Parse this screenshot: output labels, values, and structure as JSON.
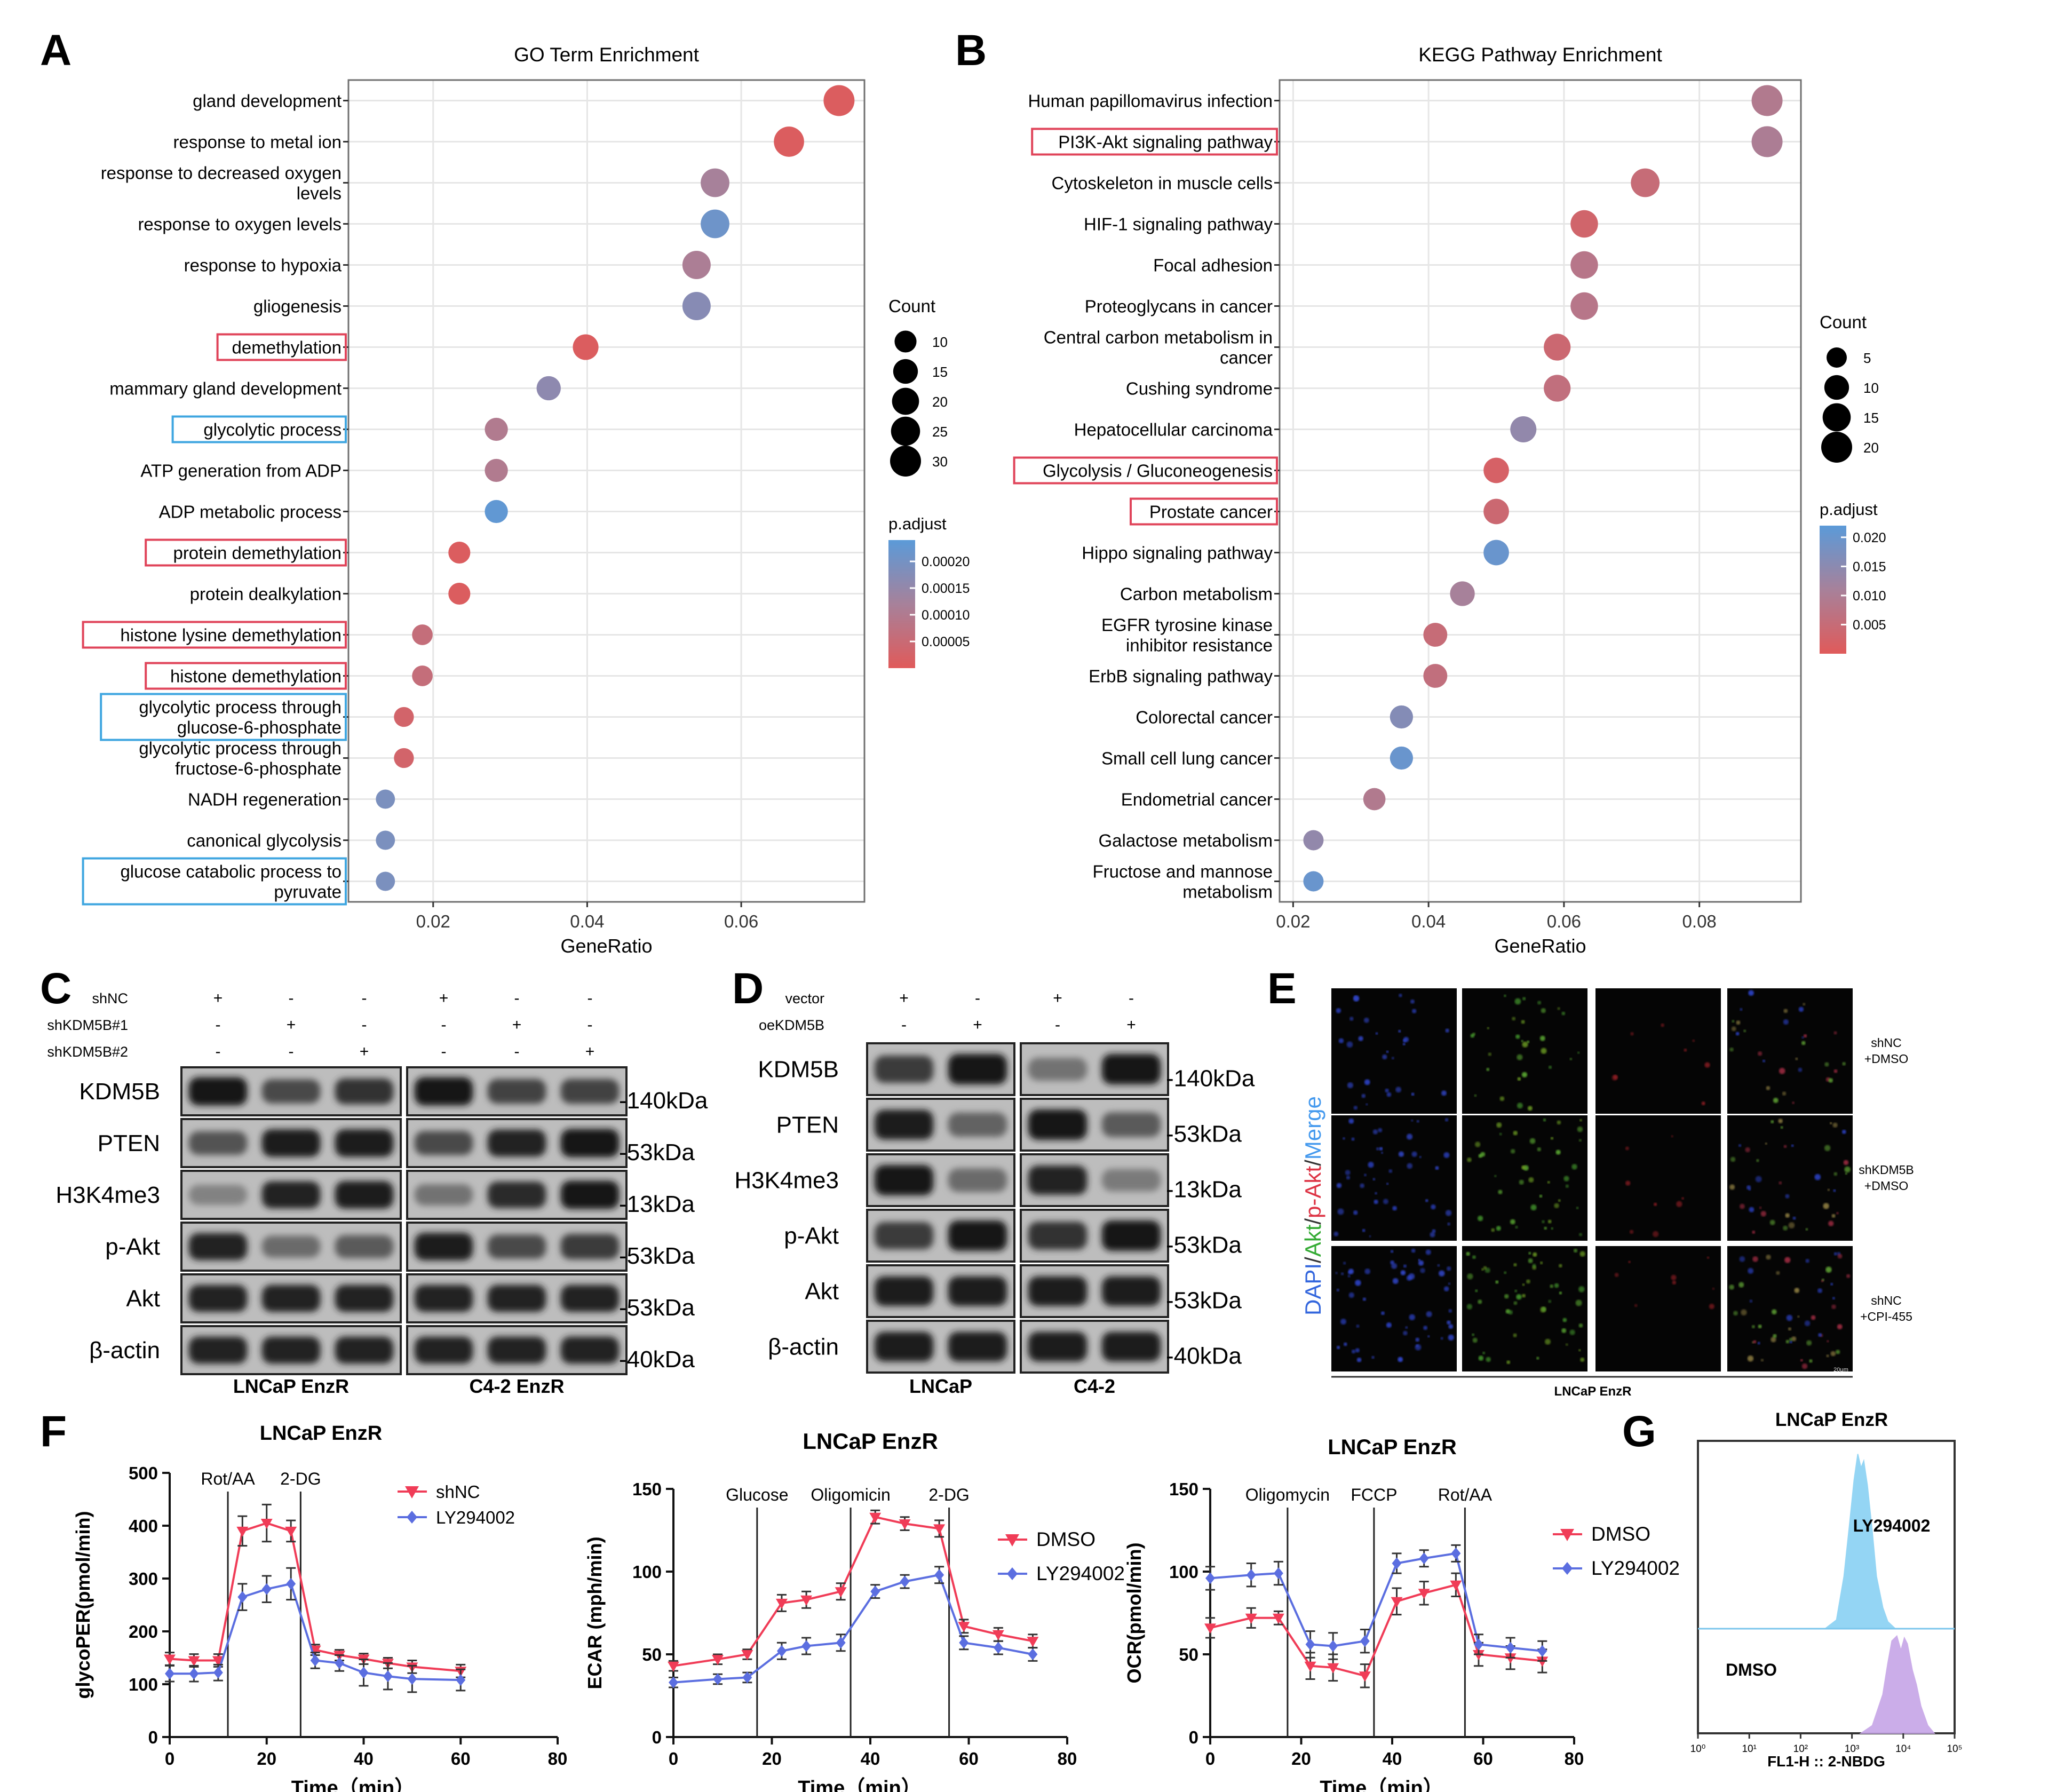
{
  "panel_letters": [
    "A",
    "B",
    "C",
    "D",
    "E",
    "F",
    "G"
  ],
  "colors": {
    "high_sig": "#e05a5a",
    "low_sig": "#5b9ad8",
    "mid": "#a7819a",
    "red_series": "#f03c57",
    "blue_series": "#5b6ee0",
    "hist_blue": "#8fd3f4",
    "hist_purple": "#c9a9e8"
  },
  "chart_data": [
    {
      "id": "A",
      "type": "scatter",
      "title": "GO Term Enrichment",
      "xlabel": "GeneRatio",
      "ylabel": "",
      "xlim": [
        0.009,
        0.076
      ],
      "xticks": [
        0.02,
        0.04,
        0.06
      ],
      "xtick_labels": [
        "0.02",
        "0.04",
        "0.06"
      ],
      "grid": true,
      "terms": [
        "gland development",
        "response to metal ion",
        "response to decreased oxygen\nlevels",
        "response to oxygen levels",
        "response to hypoxia",
        "gliogenesis",
        "demethylation",
        "mammary gland development",
        "glycolytic process",
        "ATP generation from ADP",
        "ADP metabolic process",
        "protein demethylation",
        "protein dealkylation",
        "histone lysine demethylation",
        "histone demethylation",
        "glycolytic process through\nglucose-6-phosphate",
        "glycolytic process through\nfructose-6-phosphate",
        "NADH regeneration",
        "canonical glycolysis",
        "glucose catabolic process to\npyruvate"
      ],
      "gene_ratio": [
        0.0727,
        0.0662,
        0.0566,
        0.0566,
        0.0542,
        0.0542,
        0.0398,
        0.035,
        0.0282,
        0.0282,
        0.0282,
        0.0234,
        0.0234,
        0.0186,
        0.0186,
        0.0162,
        0.0162,
        0.0138,
        0.0138,
        0.0138
      ],
      "count": [
        30,
        28,
        24,
        24,
        23,
        23,
        17,
        14,
        12,
        12,
        12,
        10,
        10,
        8,
        8,
        7,
        7,
        6,
        6,
        6
      ],
      "p_adjust": [
        1e-05,
        1e-05,
        0.00012,
        0.00021,
        0.00011,
        0.00017,
        1e-05,
        0.00016,
        0.0001,
        0.0001,
        0.00023,
        1e-05,
        1e-05,
        6e-05,
        6e-05,
        3e-05,
        3e-05,
        0.00019,
        0.00019,
        0.00019
      ],
      "highlight_red": [
        6,
        11,
        13,
        14
      ],
      "highlight_blue": [
        8,
        15,
        19
      ],
      "size_legend": {
        "title": "Count",
        "values": [
          10,
          15,
          20,
          25,
          30
        ],
        "labels": [
          "10",
          "15",
          "20",
          "25",
          "30"
        ]
      },
      "color_legend": {
        "title": "p.adjust",
        "range": [
          0.0,
          0.00024
        ],
        "ticks": [
          0.0002,
          0.00015,
          0.0001,
          5e-05
        ],
        "tick_labels": [
          "0.00020",
          "0.00015",
          "0.00010",
          "0.00005"
        ]
      }
    },
    {
      "id": "B",
      "type": "scatter",
      "title": "KEGG Pathway Enrichment",
      "xlabel": "GeneRatio",
      "ylabel": "",
      "xlim": [
        0.018,
        0.095
      ],
      "xticks": [
        0.02,
        0.04,
        0.06,
        0.08
      ],
      "xtick_labels": [
        "0.02",
        "0.04",
        "0.06",
        "0.08"
      ],
      "grid": true,
      "terms": [
        "Human papillomavirus infection",
        "PI3K-Akt signaling pathway",
        "Cytoskeleton in muscle cells",
        "HIF-1 signaling pathway",
        "Focal adhesion",
        "Proteoglycans in cancer",
        "Central carbon metabolism in\ncancer",
        "Cushing syndrome",
        "Hepatocellular carcinoma",
        "Glycolysis / Gluconeogenesis",
        "Prostate cancer",
        "Hippo signaling pathway",
        "Carbon metabolism",
        "EGFR tyrosine kinase\ninhibitor resistance",
        "ErbB signaling pathway",
        "Colorectal cancer",
        "Small cell lung cancer",
        "Endometrial cancer",
        "Galactose metabolism",
        "Fructose and mannose\nmetabolism"
      ],
      "gene_ratio": [
        0.09,
        0.09,
        0.072,
        0.063,
        0.063,
        0.063,
        0.059,
        0.059,
        0.054,
        0.05,
        0.05,
        0.05,
        0.045,
        0.041,
        0.041,
        0.036,
        0.036,
        0.032,
        0.023,
        0.023
      ],
      "count": [
        20,
        20,
        16,
        14,
        14,
        14,
        13,
        13,
        12,
        11,
        11,
        11,
        10,
        9,
        9,
        8,
        8,
        7,
        5,
        5
      ],
      "p_adjust": [
        0.009,
        0.01,
        0.005,
        0.003,
        0.008,
        0.008,
        0.004,
        0.006,
        0.014,
        0.002,
        0.004,
        0.02,
        0.011,
        0.005,
        0.006,
        0.016,
        0.02,
        0.009,
        0.014,
        0.02
      ],
      "highlight_red": [
        1,
        9,
        10
      ],
      "highlight_blue": [],
      "size_legend": {
        "title": "Count",
        "values": [
          5,
          10,
          15,
          20
        ],
        "labels": [
          "5",
          "10",
          "15",
          "20"
        ]
      },
      "color_legend": {
        "title": "p.adjust",
        "range": [
          0.0,
          0.022
        ],
        "ticks": [
          0.02,
          0.015,
          0.01,
          0.005
        ],
        "tick_labels": [
          "0.020",
          "0.015",
          "0.010",
          "0.005"
        ]
      }
    },
    {
      "id": "F1",
      "type": "line",
      "title": "LNCaP EnzR",
      "xlabel": "Time（min）",
      "ylabel": "glycoPER(pmol/min)",
      "xlim": [
        0,
        80
      ],
      "ylim": [
        0,
        500
      ],
      "xticks": [
        0,
        20,
        40,
        60,
        80
      ],
      "yticks": [
        0,
        100,
        200,
        300,
        400,
        500
      ],
      "vlines": [
        {
          "x": 12,
          "label": "Rot/AA"
        },
        {
          "x": 27,
          "label": "2-DG"
        }
      ],
      "x": [
        0,
        5,
        10,
        15,
        20,
        25,
        30,
        35,
        40,
        45,
        50,
        60
      ],
      "series": [
        {
          "name": "shNC",
          "color": "#f03c57",
          "marker": "triangle-down",
          "values": [
            148,
            145,
            145,
            390,
            405,
            390,
            165,
            155,
            148,
            140,
            133,
            125
          ],
          "err": [
            12,
            12,
            12,
            28,
            35,
            20,
            10,
            10,
            10,
            10,
            12,
            12
          ]
        },
        {
          "name": "LY294002",
          "color": "#5b6ee0",
          "marker": "diamond",
          "values": [
            120,
            120,
            122,
            265,
            280,
            290,
            145,
            140,
            122,
            115,
            110,
            108
          ],
          "err": [
            15,
            15,
            15,
            25,
            25,
            30,
            15,
            15,
            25,
            25,
            25,
            20
          ]
        }
      ]
    },
    {
      "id": "F2",
      "type": "line",
      "title": "LNCaP EnzR",
      "xlabel": "Time（min）",
      "ylabel": "ECAR (mph/min)",
      "xlim": [
        0,
        80
      ],
      "ylim": [
        0,
        150
      ],
      "xticks": [
        0,
        20,
        40,
        60,
        80
      ],
      "yticks": [
        0,
        50,
        100,
        150
      ],
      "vlines": [
        {
          "x": 17,
          "label": "Glucose"
        },
        {
          "x": 36,
          "label": "Oligomicin"
        },
        {
          "x": 56,
          "label": "2-DG"
        }
      ],
      "x": [
        0,
        9,
        15,
        22,
        27,
        34,
        41,
        47,
        54,
        59,
        66,
        73
      ],
      "series": [
        {
          "name": "DMSO",
          "color": "#f03c57",
          "marker": "triangle-down",
          "values": [
            43,
            47,
            50,
            81,
            83,
            88,
            133,
            129,
            126,
            67,
            62,
            58
          ],
          "err": [
            3,
            3,
            3,
            5,
            5,
            5,
            4,
            4,
            5,
            4,
            4,
            4
          ]
        },
        {
          "name": "LY294002",
          "color": "#5b6ee0",
          "marker": "diamond",
          "values": [
            33,
            35,
            36,
            52,
            55,
            57,
            88,
            94,
            98,
            57,
            54,
            50
          ],
          "err": [
            3,
            3,
            3,
            5,
            5,
            5,
            4,
            4,
            5,
            4,
            4,
            4
          ]
        }
      ]
    },
    {
      "id": "F3",
      "type": "line",
      "title": "LNCaP EnzR",
      "xlabel": "Time（min）",
      "ylabel": "OCR(pmol/min)",
      "xlim": [
        0,
        80
      ],
      "ylim": [
        0,
        150
      ],
      "xticks": [
        0,
        20,
        40,
        60,
        80
      ],
      "yticks": [
        0,
        50,
        100,
        150
      ],
      "vlines": [
        {
          "x": 17,
          "label": "Oligomycin"
        },
        {
          "x": 36,
          "label": "FCCP"
        },
        {
          "x": 56,
          "label": "Rot/AA"
        }
      ],
      "x": [
        0,
        9,
        15,
        22,
        27,
        34,
        41,
        47,
        54,
        59,
        66,
        73
      ],
      "series": [
        {
          "name": "DMSO",
          "color": "#f03c57",
          "marker": "triangle-down",
          "values": [
            66,
            72,
            72,
            43,
            42,
            37,
            82,
            87,
            92,
            50,
            48,
            46
          ],
          "err": [
            6,
            6,
            4,
            8,
            8,
            7,
            8,
            7,
            7,
            7,
            7,
            7
          ]
        },
        {
          "name": "LY294002",
          "color": "#5b6ee0",
          "marker": "diamond",
          "values": [
            96,
            98,
            99,
            56,
            55,
            58,
            105,
            108,
            111,
            56,
            54,
            52
          ],
          "err": [
            7,
            7,
            7,
            8,
            8,
            7,
            6,
            5,
            5,
            6,
            6,
            6
          ]
        }
      ]
    },
    {
      "id": "G",
      "type": "area",
      "title": "LNCaP EnzR",
      "xlabel": "FL1-H :: 2-NBDG",
      "xscale": "log",
      "xlim": [
        1,
        100000
      ],
      "xticks": [
        1,
        10,
        100,
        1000,
        10000,
        100000
      ],
      "xtick_labels": [
        "10⁰",
        "10¹",
        "10²",
        "10³",
        "10⁴",
        "10⁵"
      ],
      "series": [
        {
          "name": "LY294002",
          "color": "#8fd3f4",
          "x": [
            300,
            500,
            700,
            900,
            1100,
            1300,
            1500,
            1700,
            2000,
            2500,
            3000,
            4000,
            5000,
            7000
          ],
          "values": [
            0,
            0.05,
            0.3,
            0.6,
            0.85,
            1.0,
            0.92,
            0.96,
            0.82,
            0.55,
            0.3,
            0.12,
            0.04,
            0
          ]
        },
        {
          "name": "DMSO",
          "color": "#c9a9e8",
          "x": [
            1500,
            2500,
            4000,
            5000,
            6000,
            7500,
            9000,
            10500,
            12000,
            15000,
            18000,
            22000,
            30000,
            40000
          ],
          "values": [
            0,
            0.08,
            0.4,
            0.72,
            0.95,
            1.0,
            0.85,
            0.98,
            0.92,
            0.65,
            0.5,
            0.28,
            0.08,
            0
          ]
        }
      ]
    }
  ],
  "western_c": {
    "label": "C",
    "conditions": [
      {
        "name": "shNC",
        "marks": [
          "+",
          "-",
          "-",
          "+",
          "-",
          "-"
        ]
      },
      {
        "name": "shKDM5B#1",
        "marks": [
          "-",
          "+",
          "-",
          "-",
          "+",
          "-"
        ]
      },
      {
        "name": "shKDM5B#2",
        "marks": [
          "-",
          "-",
          "+",
          "-",
          "-",
          "+"
        ]
      }
    ],
    "rows": [
      {
        "name": "KDM5B",
        "kda": "-140kDa",
        "intensity": [
          0.95,
          0.6,
          0.75,
          0.95,
          0.65,
          0.65
        ]
      },
      {
        "name": "PTEN",
        "kda": "-53kDa",
        "intensity": [
          0.55,
          0.9,
          0.9,
          0.6,
          0.85,
          0.95
        ]
      },
      {
        "name": "H3K4me3",
        "kda": "-13kDa",
        "intensity": [
          0.25,
          0.85,
          0.9,
          0.35,
          0.8,
          0.95
        ]
      },
      {
        "name": "p-Akt",
        "kda": "-53kDa",
        "intensity": [
          0.85,
          0.4,
          0.5,
          0.9,
          0.6,
          0.7
        ]
      },
      {
        "name": "Akt",
        "kda": "-53kDa",
        "intensity": [
          0.85,
          0.85,
          0.85,
          0.85,
          0.85,
          0.85
        ]
      },
      {
        "name": "β-actin",
        "kda": "-40kDa",
        "intensity": [
          0.85,
          0.85,
          0.85,
          0.85,
          0.85,
          0.85
        ]
      }
    ],
    "groups": [
      "LNCaP EnzR",
      "C4-2 EnzR"
    ]
  },
  "western_d": {
    "label": "D",
    "conditions": [
      {
        "name": "vector",
        "marks": [
          "+",
          "-",
          "+",
          "-"
        ]
      },
      {
        "name": "oeKDM5B",
        "marks": [
          "-",
          "+",
          "-",
          "+"
        ]
      }
    ],
    "rows": [
      {
        "name": "KDM5B",
        "kda": "-140kDa",
        "intensity": [
          0.7,
          0.95,
          0.35,
          0.95
        ]
      },
      {
        "name": "PTEN",
        "kda": "-53kDa",
        "intensity": [
          0.9,
          0.45,
          0.95,
          0.5
        ]
      },
      {
        "name": "H3K4me3",
        "kda": "-13kDa",
        "intensity": [
          0.95,
          0.4,
          0.85,
          0.3
        ]
      },
      {
        "name": "p-Akt",
        "kda": "-53kDa",
        "intensity": [
          0.7,
          0.95,
          0.75,
          0.95
        ]
      },
      {
        "name": "Akt",
        "kda": "-53kDa",
        "intensity": [
          0.9,
          0.9,
          0.9,
          0.9
        ]
      },
      {
        "name": "β-actin",
        "kda": "-40kDa",
        "intensity": [
          0.9,
          0.9,
          0.9,
          0.9
        ]
      }
    ],
    "groups": [
      "LNCaP",
      "C4-2"
    ]
  },
  "panel_e": {
    "stain_label": [
      "DAPI",
      "/",
      "Akt",
      "/",
      "p-Akt",
      "/",
      "Merge"
    ],
    "stain_colors": [
      "#3366dd",
      "#333333",
      "#33aa33",
      "#333333",
      "#dd3344",
      "#333333",
      "#4499ee"
    ],
    "rows": [
      "shNC\n+DMSO",
      "shKDM5B\n+DMSO",
      "shNC\n+CPI-455"
    ],
    "caption": "LNCaP EnzR",
    "scale_text": "20μm"
  },
  "panel_g_labels": {
    "upper": "LY294002",
    "lower": "DMSO"
  }
}
